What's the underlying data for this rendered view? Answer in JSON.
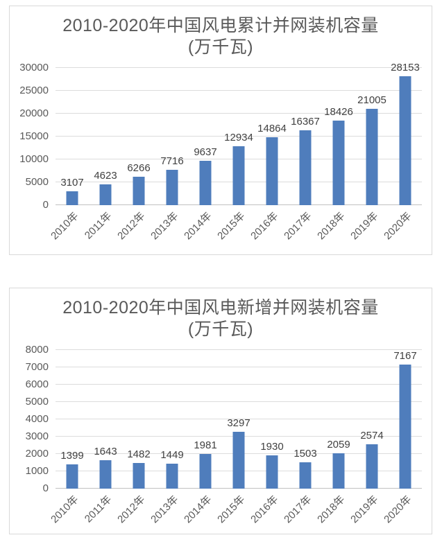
{
  "ui": {
    "bar_color": "#4f7dbc",
    "grid_color": "#dcdcdc",
    "baseline_color": "#c0c0c0",
    "card_border_color": "#d9d9d9",
    "card_background": "#ffffff",
    "title_color": "#595959",
    "tick_label_color": "#595959",
    "data_label_color": "#404040"
  },
  "chart_data": [
    {
      "type": "bar",
      "title": "2010-2020年中国风电累计并网装机容量",
      "subtitle": "(万千瓦)",
      "categories": [
        "2010年",
        "2011年",
        "2012年",
        "2013年",
        "2014年",
        "2015年",
        "2016年",
        "2017年",
        "2018年",
        "2019年",
        "2020年"
      ],
      "values": [
        3107,
        4623,
        6266,
        7716,
        9637,
        12934,
        14864,
        16367,
        18426,
        21005,
        28153
      ],
      "ylim": [
        0,
        30000
      ],
      "yticks": [
        0,
        5000,
        10000,
        15000,
        20000,
        25000,
        30000
      ],
      "grid": true,
      "legend": "none",
      "data_labels": true,
      "x_label_rotation_deg": -45
    },
    {
      "type": "bar",
      "title": "2010-2020年中国风电新增并网装机容量",
      "subtitle": "(万千瓦)",
      "categories": [
        "2010年",
        "2011年",
        "2012年",
        "2013年",
        "2014年",
        "2015年",
        "2016年",
        "2017年",
        "2018年",
        "2019年",
        "2020年"
      ],
      "values": [
        1399,
        1643,
        1482,
        1449,
        1981,
        3297,
        1930,
        1503,
        2059,
        2574,
        7167
      ],
      "ylim": [
        0,
        8000
      ],
      "yticks": [
        0,
        1000,
        2000,
        3000,
        4000,
        5000,
        6000,
        7000,
        8000
      ],
      "grid": true,
      "legend": "none",
      "data_labels": true,
      "x_label_rotation_deg": -45
    }
  ]
}
